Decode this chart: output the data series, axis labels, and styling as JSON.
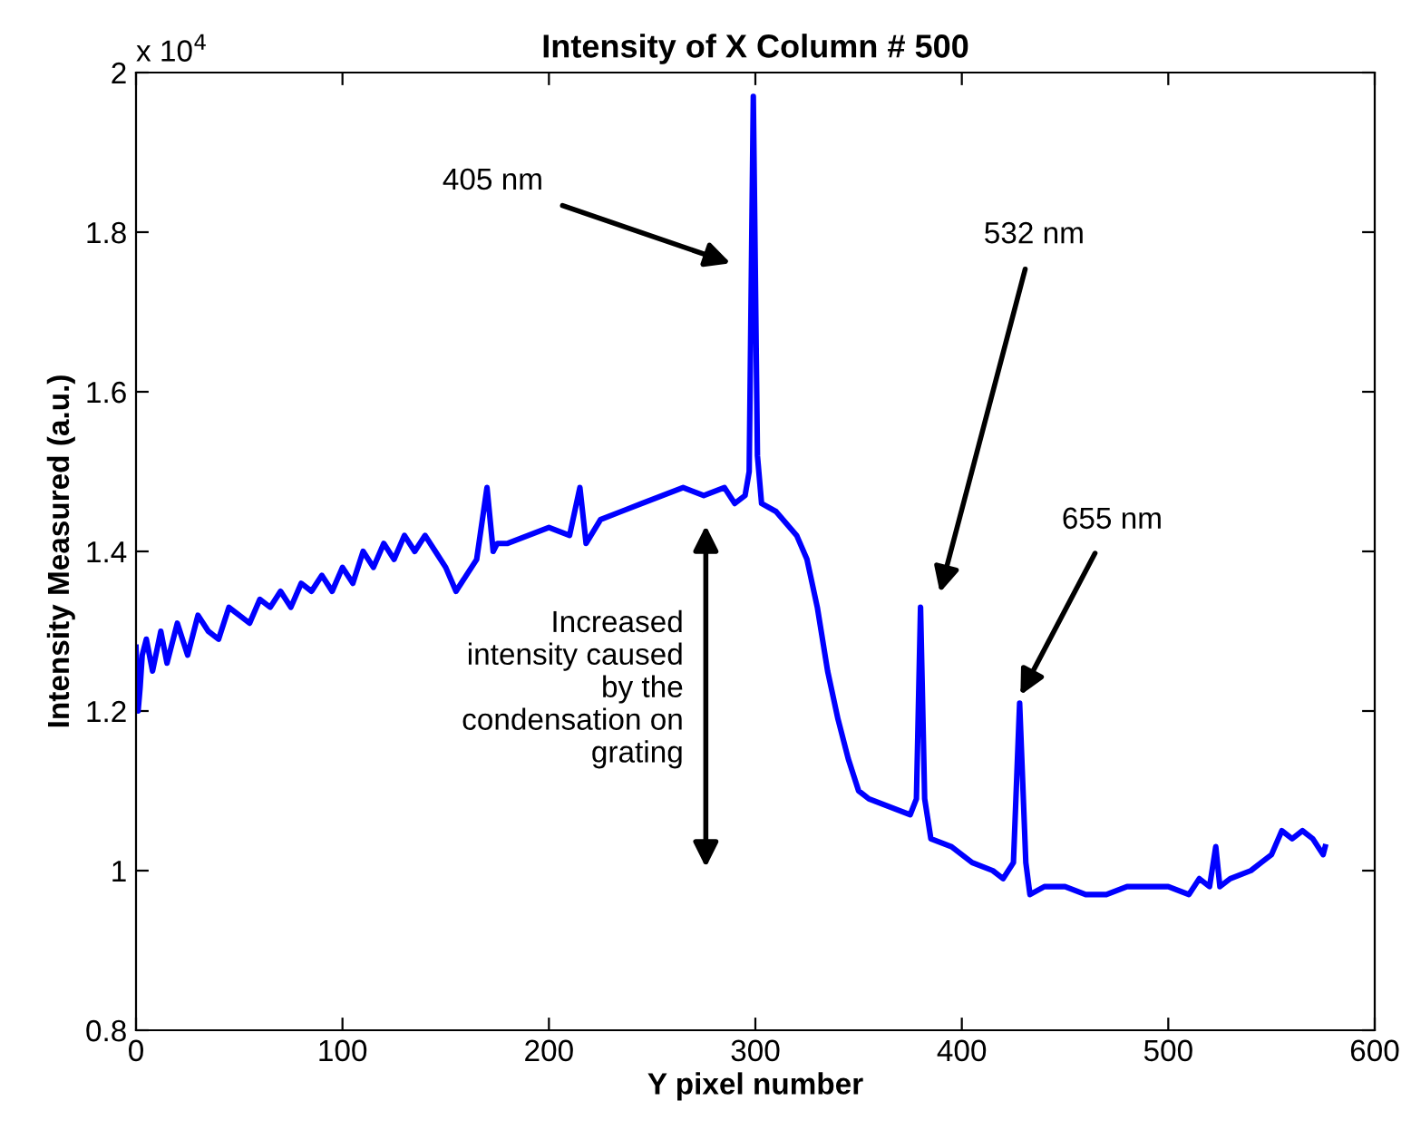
{
  "chart_data": {
    "type": "line",
    "title": "Intensity of X Column # 500",
    "xlabel": "Y pixel number",
    "ylabel": "Intensity Measured (a.u.)",
    "x": [
      0,
      1,
      2,
      3,
      5,
      8,
      12,
      15,
      20,
      25,
      30,
      35,
      40,
      45,
      50,
      55,
      60,
      65,
      70,
      75,
      80,
      85,
      90,
      95,
      100,
      105,
      110,
      115,
      120,
      125,
      130,
      135,
      140,
      145,
      150,
      155,
      160,
      165,
      170,
      173,
      175,
      180,
      190,
      200,
      210,
      215,
      218,
      225,
      235,
      245,
      255,
      265,
      275,
      285,
      290,
      295,
      297,
      299,
      301,
      303,
      310,
      320,
      325,
      330,
      335,
      340,
      345,
      350,
      355,
      365,
      375,
      378,
      380,
      382,
      385,
      395,
      405,
      415,
      420,
      425,
      428,
      431,
      433,
      440,
      450,
      460,
      470,
      480,
      490,
      500,
      510,
      515,
      520,
      523,
      525,
      530,
      540,
      545,
      550,
      555,
      560,
      565,
      570,
      575,
      576
    ],
    "series": [
      {
        "color": "#0000ff",
        "values": [
          1.28,
          1.2,
          1.23,
          1.27,
          1.29,
          1.25,
          1.3,
          1.26,
          1.31,
          1.27,
          1.32,
          1.3,
          1.29,
          1.33,
          1.32,
          1.31,
          1.34,
          1.33,
          1.35,
          1.33,
          1.36,
          1.35,
          1.37,
          1.35,
          1.38,
          1.36,
          1.4,
          1.38,
          1.41,
          1.39,
          1.42,
          1.4,
          1.42,
          1.4,
          1.38,
          1.35,
          1.37,
          1.39,
          1.48,
          1.4,
          1.41,
          1.41,
          1.42,
          1.43,
          1.42,
          1.48,
          1.41,
          1.44,
          1.45,
          1.46,
          1.47,
          1.48,
          1.47,
          1.48,
          1.46,
          1.47,
          1.5,
          1.97,
          1.52,
          1.46,
          1.45,
          1.42,
          1.39,
          1.33,
          1.25,
          1.19,
          1.14,
          1.1,
          1.09,
          1.08,
          1.07,
          1.09,
          1.33,
          1.09,
          1.04,
          1.03,
          1.01,
          1.0,
          0.99,
          1.01,
          1.21,
          1.01,
          0.97,
          0.98,
          0.98,
          0.97,
          0.97,
          0.98,
          0.98,
          0.98,
          0.97,
          0.99,
          0.98,
          1.03,
          0.98,
          0.99,
          1.0,
          1.01,
          1.02,
          1.05,
          1.04,
          1.05,
          1.04,
          1.02,
          1.03
        ]
      }
    ],
    "xlim": [
      0,
      600
    ],
    "xticks": [
      0,
      100,
      200,
      300,
      400,
      500,
      600
    ],
    "ylim": [
      0.8,
      2
    ],
    "yticks": [
      0.8,
      1,
      1.2,
      1.4,
      1.6,
      1.8,
      2
    ],
    "grid": false,
    "legend": false,
    "marker": "none",
    "line_style": "solid",
    "annotations": [
      "x 10$^{4}$",
      "405 nm",
      "532 nm",
      "655 nm",
      "Increased\nintensity caused\nby the\ncondensation on\ngrating"
    ]
  }
}
